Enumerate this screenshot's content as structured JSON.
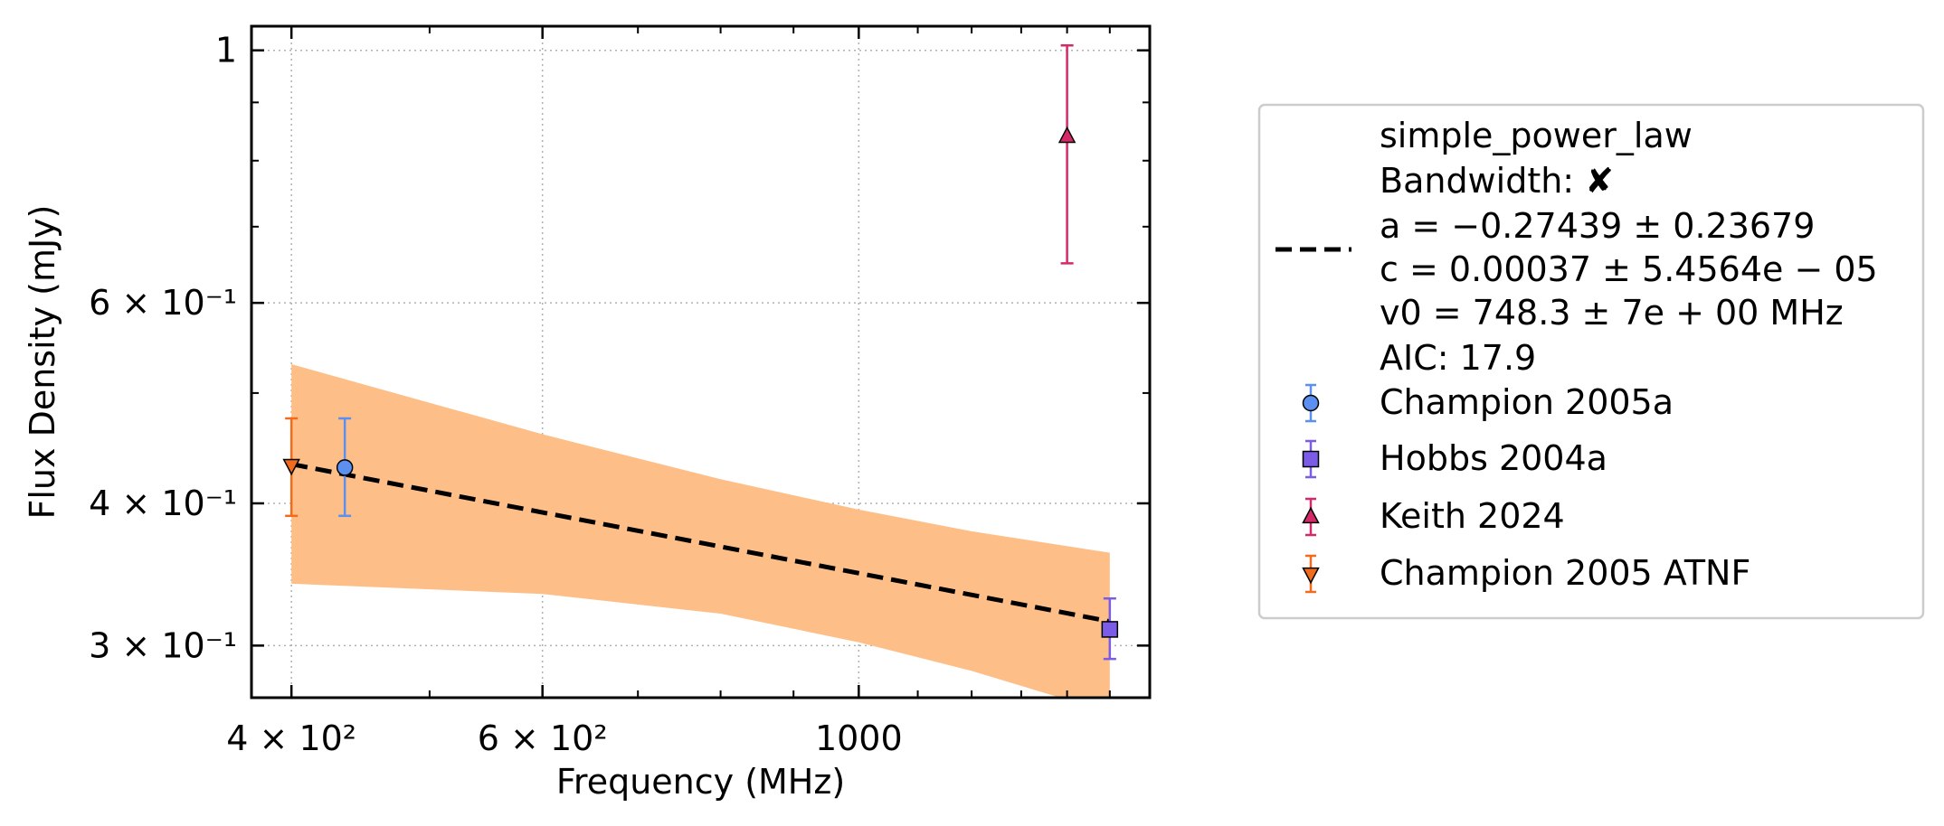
{
  "chart_data": {
    "type": "scatter",
    "xscale": "log",
    "yscale": "log",
    "xlabel": "Frequency (MHz)",
    "ylabel": "Flux Density (mJy)",
    "xlim": [
      375,
      1600
    ],
    "ylim": [
      0.27,
      1.05
    ],
    "grid": "dotted, major ticks only",
    "legend_position": "outside right",
    "xticks": [
      {
        "value": 400,
        "label": "4 × 10²"
      },
      {
        "value": 600,
        "label": "6 × 10²"
      },
      {
        "value": 1000,
        "label": "1000"
      }
    ],
    "yticks": [
      {
        "value": 0.3,
        "label": "3 × 10⁻¹"
      },
      {
        "value": 0.4,
        "label": "4 × 10⁻¹"
      },
      {
        "value": 0.6,
        "label": "6 × 10⁻¹"
      },
      {
        "value": 1.0,
        "label": "1"
      }
    ],
    "fit": {
      "model": "simple_power_law",
      "bandwidth_label": "Bandwidth:",
      "bandwidth_mark": "✘",
      "params": [
        "a = −0.27439 ± 0.23679",
        "c = 0.00037 ± 5.4564e − 05",
        "v0 = 748.3 ± 7e + 00 MHz"
      ],
      "aic": "AIC: 17.9",
      "line_points": [
        [
          400,
          0.433
        ],
        [
          1500,
          0.315
        ]
      ],
      "band_upper": [
        [
          400,
          0.53
        ],
        [
          600,
          0.46
        ],
        [
          800,
          0.42
        ],
        [
          1000,
          0.395
        ],
        [
          1200,
          0.378
        ],
        [
          1500,
          0.362
        ]
      ],
      "band_lower": [
        [
          400,
          0.34
        ],
        [
          600,
          0.333
        ],
        [
          800,
          0.32
        ],
        [
          1000,
          0.302
        ],
        [
          1200,
          0.285
        ],
        [
          1500,
          0.262
        ]
      ],
      "line_color": "#000000",
      "band_color": "#fdbf87"
    },
    "series": [
      {
        "name": "Champion 2005a",
        "marker": "circle",
        "color": "#5b8ff0",
        "points": [
          {
            "x": 436,
            "y": 0.43,
            "yerr_low": 0.39,
            "yerr_high": 0.475
          }
        ]
      },
      {
        "name": "Hobbs 2004a",
        "marker": "square",
        "color": "#7b5ce6",
        "points": [
          {
            "x": 1500,
            "y": 0.31,
            "yerr_low": 0.292,
            "yerr_high": 0.33
          }
        ]
      },
      {
        "name": "Keith 2024",
        "marker": "triangle-up",
        "color": "#d6296a",
        "points": [
          {
            "x": 1400,
            "y": 0.84,
            "yerr_low": 0.65,
            "yerr_high": 1.01
          }
        ]
      },
      {
        "name": "Champion 2005 ATNF",
        "marker": "triangle-down",
        "color": "#f26b1d",
        "points": [
          {
            "x": 400,
            "y": 0.432,
            "yerr_low": 0.39,
            "yerr_high": 0.475
          }
        ]
      }
    ]
  }
}
